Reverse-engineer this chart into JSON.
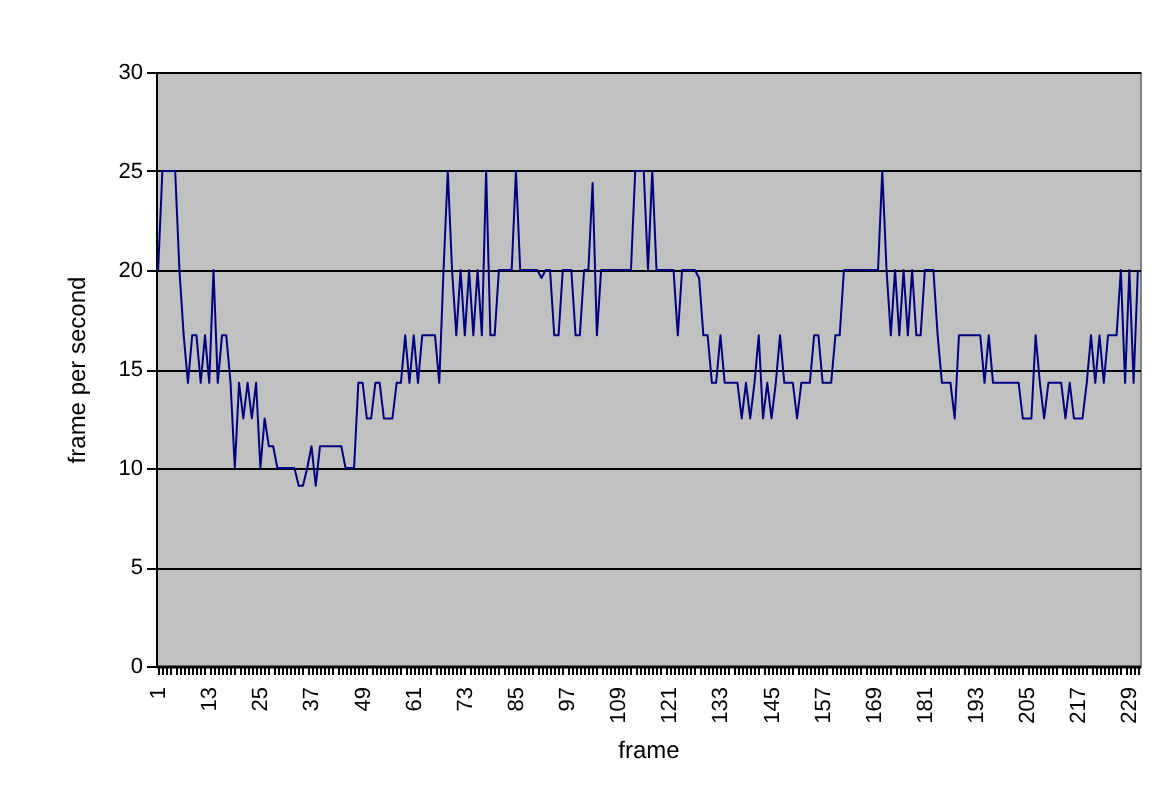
{
  "chart_data": {
    "type": "line",
    "xlabel": "frame",
    "ylabel": "frame per second",
    "color": "#000080",
    "grid": "y",
    "ylim": [
      0,
      30
    ],
    "yticks": [
      0,
      5,
      10,
      15,
      20,
      25,
      30
    ],
    "categories": [
      "1",
      null,
      null,
      null,
      null,
      null,
      null,
      null,
      null,
      null,
      null,
      null,
      "13",
      null,
      null,
      null,
      null,
      null,
      null,
      null,
      null,
      null,
      null,
      null,
      "25",
      null,
      null,
      null,
      null,
      null,
      null,
      null,
      null,
      null,
      null,
      null,
      "37",
      null,
      null,
      null,
      null,
      null,
      null,
      null,
      null,
      null,
      null,
      null,
      "49",
      null,
      null,
      null,
      null,
      null,
      null,
      null,
      null,
      null,
      null,
      null,
      "61",
      null,
      null,
      null,
      null,
      null,
      null,
      null,
      null,
      null,
      null,
      null,
      "73",
      null,
      null,
      null,
      null,
      null,
      null,
      null,
      null,
      null,
      null,
      null,
      "85",
      null,
      null,
      null,
      null,
      null,
      null,
      null,
      null,
      null,
      null,
      null,
      "97",
      null,
      null,
      null,
      null,
      null,
      null,
      null,
      null,
      null,
      null,
      null,
      "109",
      null,
      null,
      null,
      null,
      null,
      null,
      null,
      null,
      null,
      null,
      null,
      "121",
      null,
      null,
      null,
      null,
      null,
      null,
      null,
      null,
      null,
      null,
      null,
      "133",
      null,
      null,
      null,
      null,
      null,
      null,
      null,
      null,
      null,
      null,
      null,
      "145",
      null,
      null,
      null,
      null,
      null,
      null,
      null,
      null,
      null,
      null,
      null,
      "157",
      null,
      null,
      null,
      null,
      null,
      null,
      null,
      null,
      null,
      null,
      null,
      "169",
      null,
      null,
      null,
      null,
      null,
      null,
      null,
      null,
      null,
      null,
      null,
      "181",
      null,
      null,
      null,
      null,
      null,
      null,
      null,
      null,
      null,
      null,
      null,
      "193",
      null,
      null,
      null,
      null,
      null,
      null,
      null,
      null,
      null,
      null,
      null,
      "205",
      null,
      null,
      null,
      null,
      null,
      null,
      null,
      null,
      null,
      null,
      null,
      "217",
      null,
      null,
      null,
      null,
      null,
      null,
      null,
      null,
      null,
      null,
      null,
      "229",
      null,
      null
    ],
    "values": [
      20,
      25,
      25,
      25,
      25,
      20,
      16.7,
      14.3,
      16.7,
      16.7,
      14.3,
      16.7,
      14.3,
      20,
      14.3,
      16.7,
      16.7,
      14.3,
      10,
      14.3,
      12.5,
      14.3,
      12.5,
      14.3,
      10,
      12.5,
      11.1,
      11.1,
      10,
      10,
      10,
      10,
      10,
      9.1,
      9.1,
      10,
      11.1,
      9.1,
      11.1,
      11.1,
      11.1,
      11.1,
      11.1,
      11.1,
      10,
      10,
      10,
      14.3,
      14.3,
      12.5,
      12.5,
      14.3,
      14.3,
      12.5,
      12.5,
      12.5,
      14.3,
      14.3,
      16.7,
      14.3,
      16.7,
      14.3,
      16.7,
      16.7,
      16.7,
      16.7,
      14.3,
      20,
      25,
      20,
      16.7,
      20,
      16.7,
      20,
      16.7,
      20,
      16.7,
      25,
      16.7,
      16.7,
      20,
      20,
      20,
      20,
      25,
      20,
      20,
      20,
      20,
      20,
      19.6,
      20,
      20,
      16.7,
      16.7,
      20,
      20,
      20,
      16.7,
      16.7,
      20,
      20,
      24.4,
      16.7,
      20,
      20,
      20,
      20,
      20,
      20,
      20,
      20,
      25,
      25,
      25,
      20,
      25,
      20,
      20,
      20,
      20,
      20,
      16.7,
      20,
      20,
      20,
      20,
      19.6,
      16.7,
      16.7,
      14.3,
      14.3,
      16.7,
      14.3,
      14.3,
      14.3,
      14.3,
      12.5,
      14.3,
      12.5,
      14.3,
      16.7,
      12.5,
      14.3,
      12.5,
      14.3,
      16.7,
      14.3,
      14.3,
      14.3,
      12.5,
      14.3,
      14.3,
      14.3,
      16.7,
      16.7,
      14.3,
      14.3,
      14.3,
      16.7,
      16.7,
      20,
      20,
      20,
      20,
      20,
      20,
      20,
      20,
      20,
      25,
      20,
      16.7,
      20,
      16.7,
      20,
      16.7,
      20,
      16.7,
      16.7,
      20,
      20,
      20,
      16.7,
      14.3,
      14.3,
      14.3,
      12.5,
      16.7,
      16.7,
      16.7,
      16.7,
      16.7,
      16.7,
      14.3,
      16.7,
      14.3,
      14.3,
      14.3,
      14.3,
      14.3,
      14.3,
      14.3,
      12.5,
      12.5,
      12.5,
      16.7,
      14.3,
      12.5,
      14.3,
      14.3,
      14.3,
      14.3,
      12.5,
      14.3,
      12.5,
      12.5,
      12.5,
      14.3,
      16.7,
      14.3,
      16.7,
      14.3,
      16.7,
      16.7,
      16.7,
      20,
      14.3,
      20,
      14.3,
      20
    ]
  }
}
